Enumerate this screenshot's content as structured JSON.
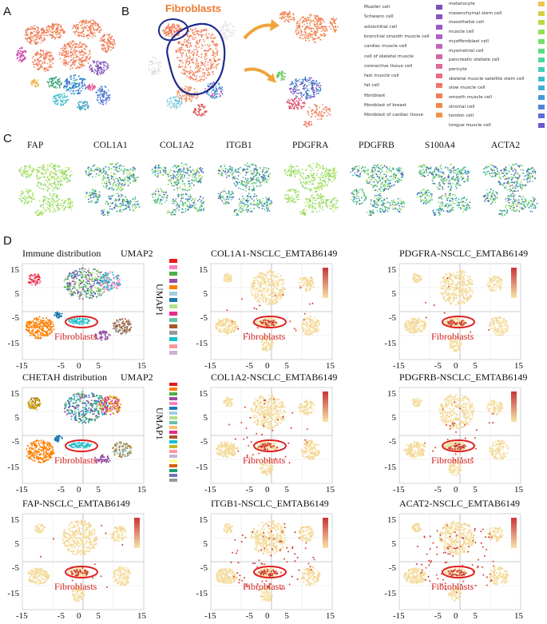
{
  "panels": {
    "A": "A",
    "B": "B",
    "C": "C",
    "D": "D"
  },
  "panelB": {
    "fibroblasts_title": "Fibroblasts",
    "legend_col1": [
      {
        "label": "Mueller cell",
        "color": "#7b4fb3"
      },
      {
        "label": "Schwann cell",
        "color": "#8a53c1"
      },
      {
        "label": "adventitial cell",
        "color": "#9b59c8"
      },
      {
        "label": "bronchial smooth muscle cell",
        "color": "#b35fc9"
      },
      {
        "label": "cardiac muscle cell",
        "color": "#c264c2"
      },
      {
        "label": "cell of skeletal muscle",
        "color": "#d266a8"
      },
      {
        "label": "connective tissue cell",
        "color": "#e0689a"
      },
      {
        "label": "fast muscle cell",
        "color": "#ea6c86"
      },
      {
        "label": "fat cell",
        "color": "#ef7368"
      },
      {
        "label": "fibroblast",
        "color": "#f07b55"
      },
      {
        "label": "fibroblast of breast",
        "color": "#f2874a"
      },
      {
        "label": "fibroblast of cardiac tissue",
        "color": "#f19346"
      }
    ],
    "legend_col2": [
      {
        "label": "melanocyte",
        "color": "#efc44a"
      },
      {
        "label": "mesenchymal stem cell",
        "color": "#d8d044"
      },
      {
        "label": "mesothelial cell",
        "color": "#b7d847"
      },
      {
        "label": "muscle cell",
        "color": "#96dc55"
      },
      {
        "label": "myofibroblast cell",
        "color": "#77de68"
      },
      {
        "label": "myometrial cell",
        "color": "#5ddc7d"
      },
      {
        "label": "pancreatic stellate cell",
        "color": "#4bd89a"
      },
      {
        "label": "pericyte",
        "color": "#41d0b6"
      },
      {
        "label": "skeletal muscle satellite stem cell",
        "color": "#3ec0cc"
      },
      {
        "label": "slow muscle cell",
        "color": "#3eaed8"
      },
      {
        "label": "smooth muscle cell",
        "color": "#4598dd"
      },
      {
        "label": "stromal cell",
        "color": "#4f82dc"
      },
      {
        "label": "tendon cell",
        "color": "#5a6dd6"
      },
      {
        "label": "tongue muscle cell",
        "color": "#6559cf"
      }
    ]
  },
  "panelC": {
    "genes": [
      "FAP",
      "COL1A1",
      "COL1A2",
      "ITGB1",
      "PDGFRA",
      "PDGFRB",
      "S100A4",
      "ACTA2"
    ]
  },
  "panelD": {
    "umap_x_label": "UMAP2",
    "umap_y_label": "UMAP1",
    "fibroblasts_label": "Fibroblasts",
    "y_ticks": [
      "15",
      "5",
      "-5",
      "-15"
    ],
    "x_ticks": [
      "-15",
      "-5",
      "0",
      "5",
      "15"
    ],
    "plots": [
      {
        "title": "Immune distribution",
        "kind": "categorical"
      },
      {
        "title": "COL1A1-NSCLC_EMTAB6149",
        "kind": "expression"
      },
      {
        "title": "PDGFRA-NSCLC_EMTAB6149",
        "kind": "expression"
      },
      {
        "title": "CHETAH distribution",
        "kind": "categorical"
      },
      {
        "title": "COL1A2-NSCLC_EMTAB6149",
        "kind": "expression"
      },
      {
        "title": "PDGFRB-NSCLC_EMTAB6149",
        "kind": "expression"
      },
      {
        "title": "FAP-NSCLC_EMTAB6149",
        "kind": "expression"
      },
      {
        "title": "ITGB1-NSCLC_EMTAB6149",
        "kind": "expression"
      },
      {
        "title": "ACAT2-NSCLC_EMTAB6149",
        "kind": "expression"
      }
    ],
    "immune_legend_colors": [
      "#e41a1c",
      "#f781bf",
      "#4daf4a",
      "#984ea3",
      "#ff7f00",
      "#a6cee3",
      "#1f78b4",
      "#b2df8a",
      "#e7298a",
      "#66c2a5",
      "#a65628",
      "#999999",
      "#17becf",
      "#fb9a99",
      "#cab2d6"
    ],
    "chetah_legend_colors": [
      "#e41a1c",
      "#ff7f00",
      "#4daf4a",
      "#984ea3",
      "#f781bf",
      "#1f78b4",
      "#a6cee3",
      "#b2df8a",
      "#66c2a5",
      "#fdbf6f",
      "#e7298a",
      "#a65628",
      "#17becf",
      "#bcbd22",
      "#fb9a99",
      "#cab2d6",
      "#ffff99",
      "#d95f02",
      "#1b9e77",
      "#7570b3",
      "#999999"
    ]
  }
}
